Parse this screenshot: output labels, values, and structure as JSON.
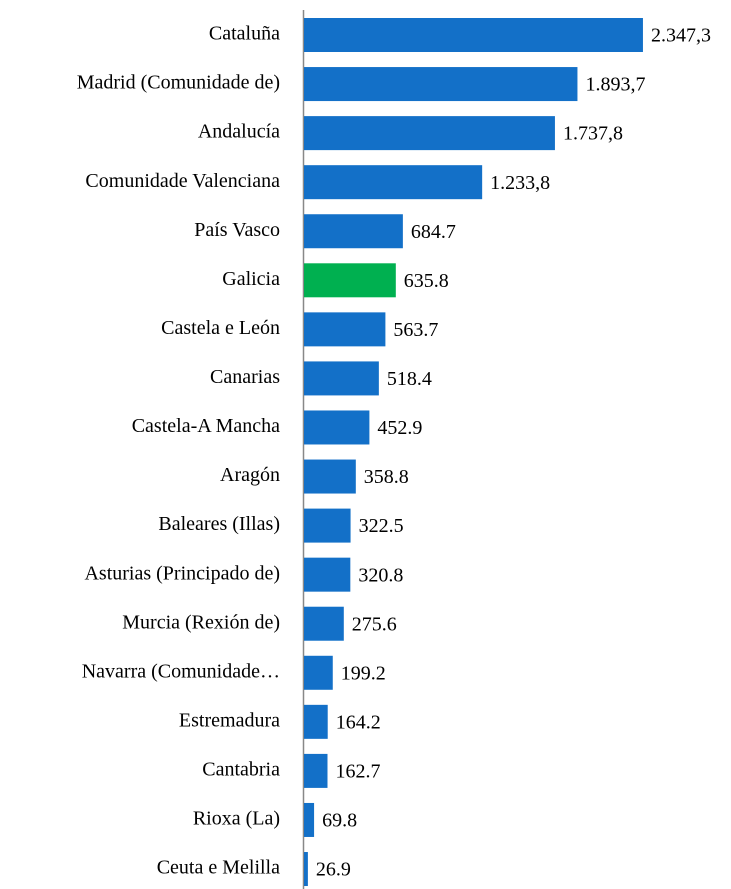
{
  "chart_data": {
    "type": "hbar",
    "categories": [
      "Cataluña",
      "Madrid (Comunidade de)",
      "Andalucía",
      "Comunidade Valenciana",
      "País Vasco",
      "Galicia",
      "Castela e León",
      "Canarias",
      "Castela-A Mancha",
      "Aragón",
      "Baleares (Illas)",
      "Asturias (Principado de)",
      "Murcia (Rexión de)",
      "Navarra (Comunidade…",
      "Estremadura",
      "Cantabria",
      "Rioxa (La)",
      "Ceuta e Melilla"
    ],
    "values": [
      2347.3,
      1893.7,
      1737.8,
      1233.8,
      684.7,
      635.8,
      563.7,
      518.4,
      452.9,
      358.8,
      322.5,
      320.8,
      275.6,
      199.2,
      164.2,
      162.7,
      69.8,
      26.9
    ],
    "value_labels": [
      "2.347,3",
      "1.893,7",
      "1.737,8",
      "1.233,8",
      "684.7",
      "635.8",
      "563.7",
      "518.4",
      "452.9",
      "358.8",
      "322.5",
      "320.8",
      "275.6",
      "199.2",
      "164.2",
      "162.7",
      "69.8",
      "26.9"
    ],
    "colors": [
      "#1370c8",
      "#1370c8",
      "#1370c8",
      "#1370c8",
      "#1370c8",
      "#00b050",
      "#1370c8",
      "#1370c8",
      "#1370c8",
      "#1370c8",
      "#1370c8",
      "#1370c8",
      "#1370c8",
      "#1370c8",
      "#1370c8",
      "#1370c8",
      "#1370c8",
      "#1370c8"
    ],
    "xlim": [
      0,
      2500
    ]
  }
}
